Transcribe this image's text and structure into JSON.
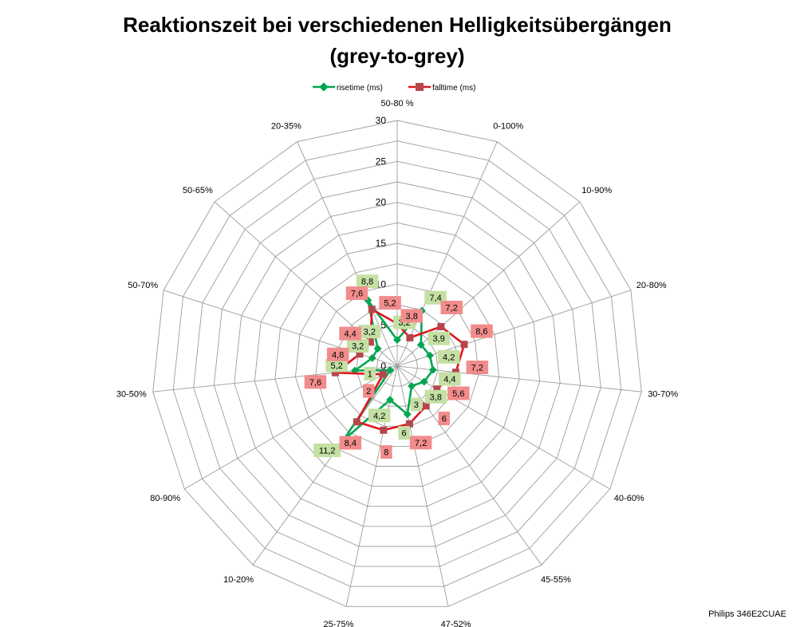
{
  "chart_data": {
    "type": "radar",
    "title_lines": [
      "Reaktionszeit bei verschiedenen Helligkeitsübergängen",
      "(grey-to-grey)"
    ],
    "categories": [
      "50-80 %",
      "0-100%",
      "10-90%",
      "20-80%",
      "30-70%",
      "40-60%",
      "45-55%",
      "47-52%",
      "25-75%",
      "10-20%",
      "80-90%",
      "30-50%",
      "50-70%",
      "50-65%",
      "20-35%"
    ],
    "rlim": [
      0,
      30
    ],
    "ticks": [
      "0",
      "5",
      "10",
      "15",
      "20",
      "25",
      "30"
    ],
    "grid": true,
    "legend_position": "top",
    "series": [
      {
        "name": "risetime (ms)",
        "color": "#00a650",
        "label_bg": "#c4e0a4",
        "values": [
          3.2,
          7.4,
          3.9,
          4.2,
          4.4,
          3.8,
          3,
          6,
          4.2,
          11.2,
          1,
          5.2,
          3.2,
          3.2,
          8.8
        ],
        "labels": [
          "3,2",
          "7,4",
          "3,9",
          "4,2",
          "4,4",
          "3,8",
          "3",
          "6",
          "4,2",
          "11,2",
          "1",
          "5,2",
          "3,2",
          "3,2",
          "8,8"
        ]
      },
      {
        "name": "falltime (ms)",
        "color": "#e0161b",
        "label_bg": "#f28c8c",
        "values": [
          5.2,
          3.8,
          7.2,
          8.6,
          7.2,
          5.6,
          6,
          7.2,
          8,
          8.4,
          2,
          7.6,
          4.8,
          4.4,
          7.6
        ],
        "labels": [
          "5,2",
          "3,8",
          "7,2",
          "8,6",
          "7,2",
          "5,6",
          "6",
          "7,2",
          "8",
          "8,4",
          "2",
          "7,6",
          "4,8",
          "4,4",
          "7,6"
        ]
      }
    ]
  },
  "footer": "Philips 346E2CUAE"
}
